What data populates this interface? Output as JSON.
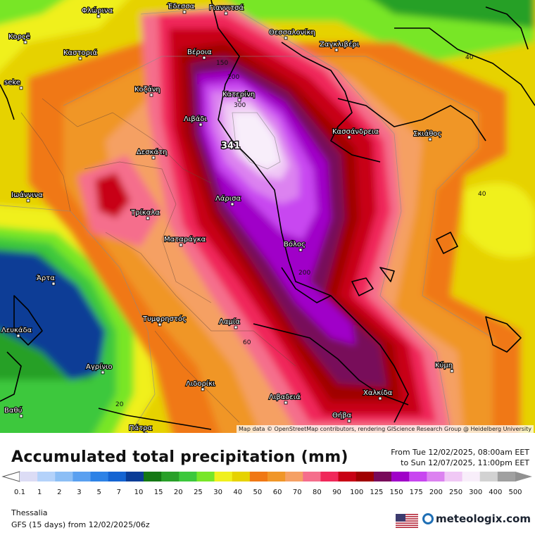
{
  "map": {
    "attribution": "Map data © OpenStreetMap contributors, rendering GIScience Research Group @ Heidelberg University",
    "peak_label": "341",
    "places": [
      {
        "name": "Φλώρινα"
      },
      {
        "name": "Έδεσσα"
      },
      {
        "name": "Γιαννιτσά"
      },
      {
        "name": "Κορçë"
      },
      {
        "name": "Θεσσαλονίκη"
      },
      {
        "name": "Ζαγκλιβέρι"
      },
      {
        "name": "Καστοριά"
      },
      {
        "name": "Βέροια"
      },
      {
        "name": "seke"
      },
      {
        "name": "Κοζάνη"
      },
      {
        "name": "Κατερίνη"
      },
      {
        "name": "Κασσάνδρεια"
      },
      {
        "name": "Σκιάθος"
      },
      {
        "name": "Λιβάδι"
      },
      {
        "name": "Δεσκάτη"
      },
      {
        "name": "Ιωάννινα"
      },
      {
        "name": "Λάρισα"
      },
      {
        "name": "Τρίκαλα"
      },
      {
        "name": "Ματαράγκα"
      },
      {
        "name": "Βόλος"
      },
      {
        "name": "Άρτα"
      },
      {
        "name": "Τυμφρηστός"
      },
      {
        "name": "Λαμία"
      },
      {
        "name": "Λευκάδα"
      },
      {
        "name": "Αγρίνιο"
      },
      {
        "name": "Κύμη"
      },
      {
        "name": "Λιδορίκι"
      },
      {
        "name": "Χαλκίδα"
      },
      {
        "name": "Λιβαδειά"
      },
      {
        "name": "Βαθύ"
      },
      {
        "name": "Θήβα"
      },
      {
        "name": "Πάτρα"
      }
    ],
    "contour_labels": [
      "150",
      "200",
      "300",
      "200",
      "40",
      "40",
      "60",
      "20"
    ]
  },
  "header": {
    "title": "Accumulated total precipitation (mm)",
    "period_from": "From Tue 12/02/2025, 08:00am EET",
    "period_to": "to Sun 12/07/2025, 11:00pm EET"
  },
  "legend": {
    "ticks": [
      "0.1",
      "1",
      "2",
      "3",
      "5",
      "7",
      "10",
      "15",
      "20",
      "25",
      "30",
      "40",
      "50",
      "60",
      "70",
      "80",
      "90",
      "100",
      "125",
      "150",
      "175",
      "200",
      "250",
      "300",
      "400",
      "500"
    ],
    "colors": [
      "#dcdcf5",
      "#b4d2fa",
      "#8cbef5",
      "#5aa0f0",
      "#2d82e6",
      "#1464d2",
      "#0a3c96",
      "#147814",
      "#28a028",
      "#3cc83c",
      "#78e628",
      "#f0f01e",
      "#e6d200",
      "#f07814",
      "#f09628",
      "#f5a064",
      "#f56e8c",
      "#f0285a",
      "#c80014",
      "#a00000",
      "#780a5a",
      "#a000c8",
      "#c846f0",
      "#dc82f0",
      "#f0c8f5",
      "#f8eefa",
      "#d2d2d2",
      "#a0a0a0"
    ]
  },
  "footer": {
    "region": "Thessalia",
    "model": "GFS (15 days) from  12/02/2025/06z",
    "brand": "meteologix.com",
    "flag_icon": "us-flag-icon"
  }
}
